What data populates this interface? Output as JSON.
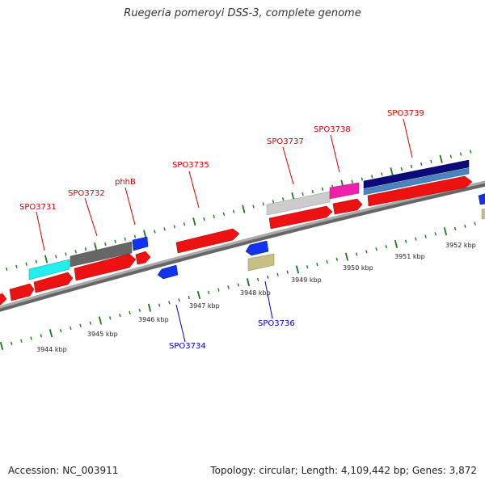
{
  "title": "Ruegeria pomeroyi DSS-3, complete genome",
  "footer": {
    "accession": "Accession: NC_003911",
    "stats": "Topology: circular; Length: 4,109,442 bp; Genes: 3,872"
  },
  "colors": {
    "backbone": "#8c8c8c",
    "tick": "#1a7a1a",
    "cds": "#ee1111",
    "label_top": "#cc0000",
    "label_bottom": "#0000aa"
  },
  "scale_labels": [
    "3944 kbp",
    "3945 kbp",
    "3946 kbp",
    "3947 kbp",
    "3948 kbp",
    "3949 kbp",
    "3950 kbp",
    "3951 kbp",
    "3952 kbp"
  ],
  "gene_labels_top": [
    "SPO3731",
    "SPO3732",
    "phhB",
    "SPO3735",
    "SPO3737",
    "SPO3738",
    "SPO3739"
  ],
  "gene_labels_bottom": [
    "SPO3734",
    "SPO3736"
  ]
}
